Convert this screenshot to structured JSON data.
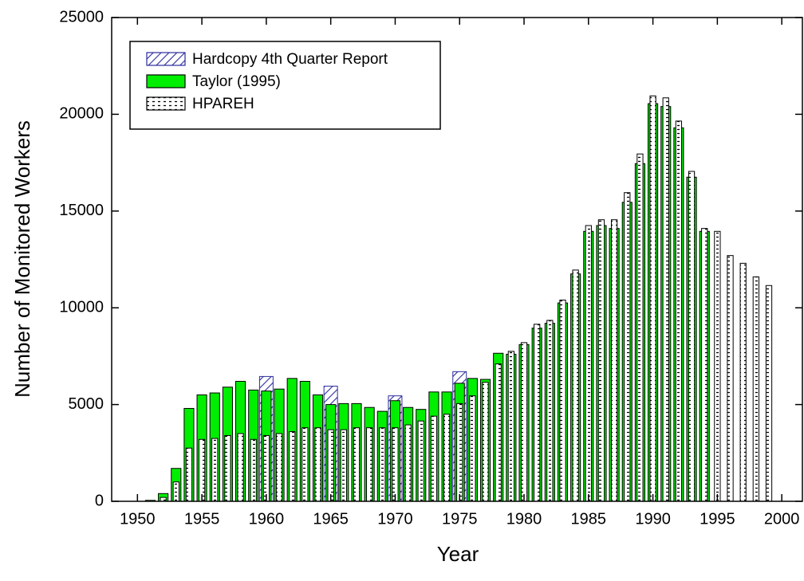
{
  "chart_data": {
    "type": "bar",
    "x_label": "Year",
    "y_label": "Number of Monitored Workers",
    "xlim": [
      1948,
      2001.6
    ],
    "xticks": [
      1950,
      1955,
      1960,
      1965,
      1970,
      1975,
      1980,
      1985,
      1990,
      1995,
      2000
    ],
    "ylim": [
      0,
      25000
    ],
    "yticks": [
      0,
      5000,
      10000,
      15000,
      20000,
      25000
    ],
    "legend": "upper left",
    "series": [
      {
        "name": "Hardcopy 4th Quarter Report",
        "color": "#2b2b9e",
        "hatch": "diagonal",
        "x": [
          1960,
          1965,
          1970,
          1975
        ],
        "values": [
          6450,
          5950,
          5450,
          6700
        ]
      },
      {
        "name": "Taylor (1995)",
        "color": "#00ee00",
        "hatch": "none",
        "x": [
          1951,
          1952,
          1953,
          1954,
          1955,
          1956,
          1957,
          1958,
          1959,
          1960,
          1961,
          1962,
          1963,
          1964,
          1965,
          1966,
          1967,
          1968,
          1969,
          1970,
          1971,
          1972,
          1973,
          1974,
          1975,
          1976,
          1977,
          1978,
          1979,
          1980,
          1981,
          1982,
          1983,
          1984,
          1985,
          1986,
          1987,
          1988,
          1989,
          1990,
          1991,
          1992,
          1993,
          1994
        ],
        "values": [
          50,
          400,
          1700,
          4800,
          5500,
          5600,
          5900,
          6200,
          5750,
          5700,
          5800,
          6350,
          6200,
          5500,
          5000,
          5050,
          5050,
          4850,
          4650,
          5200,
          4850,
          4750,
          5650,
          5650,
          6100,
          6350,
          6300,
          7650,
          7600,
          8100,
          8950,
          9200,
          10250,
          11750,
          13950,
          14250,
          14100,
          15450,
          17450,
          20550,
          20400,
          19300,
          16750,
          13950
        ]
      },
      {
        "name": "HPAREH",
        "color": "#ffffff",
        "hatch": "horizontal",
        "x": [
          1952,
          1953,
          1954,
          1955,
          1956,
          1957,
          1958,
          1959,
          1960,
          1961,
          1962,
          1963,
          1964,
          1965,
          1966,
          1967,
          1968,
          1969,
          1970,
          1971,
          1972,
          1973,
          1974,
          1975,
          1976,
          1977,
          1978,
          1979,
          1980,
          1981,
          1982,
          1983,
          1984,
          1985,
          1986,
          1987,
          1988,
          1989,
          1990,
          1991,
          1992,
          1993,
          1994,
          1995,
          1996,
          1997,
          1998,
          1999
        ],
        "values": [
          200,
          1000,
          2750,
          3200,
          3250,
          3400,
          3500,
          3200,
          3400,
          3500,
          3600,
          3800,
          3800,
          3700,
          3700,
          3800,
          3800,
          3800,
          3800,
          3950,
          4150,
          4400,
          4500,
          5050,
          5450,
          6150,
          7100,
          7750,
          8200,
          9150,
          9350,
          10400,
          11950,
          14250,
          14550,
          14550,
          15950,
          17950,
          20950,
          20850,
          19650,
          17050,
          14100,
          13950,
          12700,
          12300,
          11600,
          11150
        ]
      }
    ]
  }
}
